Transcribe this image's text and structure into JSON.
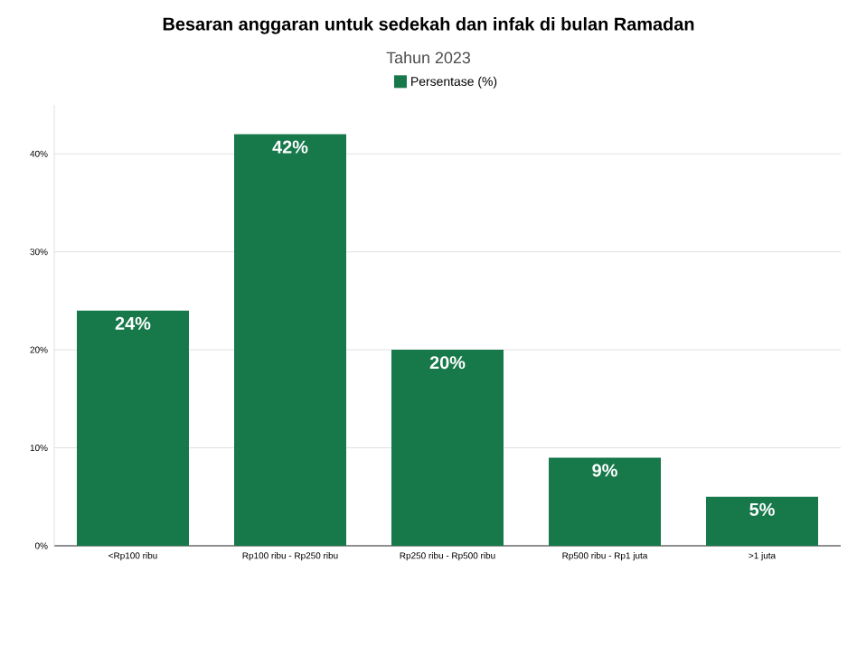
{
  "chart_data": {
    "type": "bar",
    "title": "Besaran anggaran untuk sedekah dan infak di bulan Ramadan",
    "subtitle": "Tahun 2023",
    "categories": [
      "<Rp100 ribu",
      "Rp100 ribu - Rp250 ribu",
      "Rp250 ribu - Rp500 ribu",
      "Rp500 ribu - Rp1 juta",
      ">1 juta"
    ],
    "series": [
      {
        "name": "Persentase (%)",
        "color": "#17784a",
        "values": [
          24,
          42,
          20,
          9,
          5
        ],
        "value_labels": [
          "24%",
          "42%",
          "20%",
          "9%",
          "5%"
        ]
      }
    ],
    "yticks": [
      {
        "value": 0,
        "label": "0%"
      },
      {
        "value": 10,
        "label": "10%"
      },
      {
        "value": 20,
        "label": "20%"
      },
      {
        "value": 30,
        "label": "30%"
      },
      {
        "value": 40,
        "label": "40%"
      }
    ],
    "ylim": [
      0,
      45
    ],
    "grid": "y",
    "legend": "top"
  }
}
